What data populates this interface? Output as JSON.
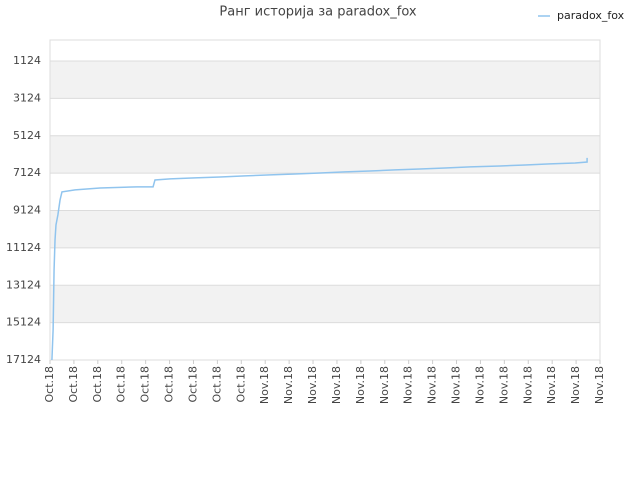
{
  "chart_data": {
    "type": "line",
    "title": "Ранг историја за paradox_fox",
    "legend": "top-right",
    "grid": true,
    "series": [
      {
        "name": "paradox_fox",
        "color": "#90c4ee",
        "x": [
          0.08,
          0.13,
          0.17,
          0.21,
          0.25,
          0.33,
          0.42,
          0.5,
          1.05,
          2.09,
          3.64,
          4.31,
          4.39,
          5.02,
          6.06,
          7.11,
          8.16,
          9.2,
          10.25,
          11.29,
          12.34,
          13.38,
          14.43,
          15.47,
          16.52,
          17.57,
          18.82,
          19.87,
          20.91,
          21.96,
          22.46,
          22.46
        ],
        "values": [
          17124,
          15500,
          12300,
          10700,
          9900,
          9360,
          8560,
          8130,
          8020,
          7920,
          7860,
          7860,
          7490,
          7430,
          7380,
          7330,
          7270,
          7220,
          7170,
          7120,
          7060,
          7010,
          6950,
          6900,
          6850,
          6790,
          6740,
          6690,
          6630,
          6580,
          6530,
          6310
        ]
      }
    ],
    "xlim": [
      0,
      23
    ],
    "xticks": [
      {
        "value": 0,
        "label": "Oct.18"
      },
      {
        "value": 1,
        "label": "Oct.18"
      },
      {
        "value": 2,
        "label": "Oct.18"
      },
      {
        "value": 3,
        "label": "Oct.18"
      },
      {
        "value": 4,
        "label": "Oct.18"
      },
      {
        "value": 5,
        "label": "Oct.18"
      },
      {
        "value": 6,
        "label": "Oct.18"
      },
      {
        "value": 7,
        "label": "Oct.18"
      },
      {
        "value": 8,
        "label": "Oct.18"
      },
      {
        "value": 9,
        "label": "Nov.18"
      },
      {
        "value": 10,
        "label": "Nov.18"
      },
      {
        "value": 11,
        "label": "Nov.18"
      },
      {
        "value": 12,
        "label": "Nov.18"
      },
      {
        "value": 13,
        "label": "Nov.18"
      },
      {
        "value": 14,
        "label": "Nov.18"
      },
      {
        "value": 15,
        "label": "Nov.18"
      },
      {
        "value": 16,
        "label": "Nov.18"
      },
      {
        "value": 17,
        "label": "Nov.18"
      },
      {
        "value": 18,
        "label": "Nov.18"
      },
      {
        "value": 19,
        "label": "Nov.18"
      },
      {
        "value": 20,
        "label": "Nov.18"
      },
      {
        "value": 21,
        "label": "Nov.18"
      },
      {
        "value": 22,
        "label": "Nov.18"
      },
      {
        "value": 23,
        "label": "Nov.18"
      }
    ],
    "ylim": [
      17124,
      0
    ],
    "yticks": [
      1124,
      3124,
      5124,
      7124,
      9124,
      11124,
      13124,
      15124,
      17124
    ]
  }
}
